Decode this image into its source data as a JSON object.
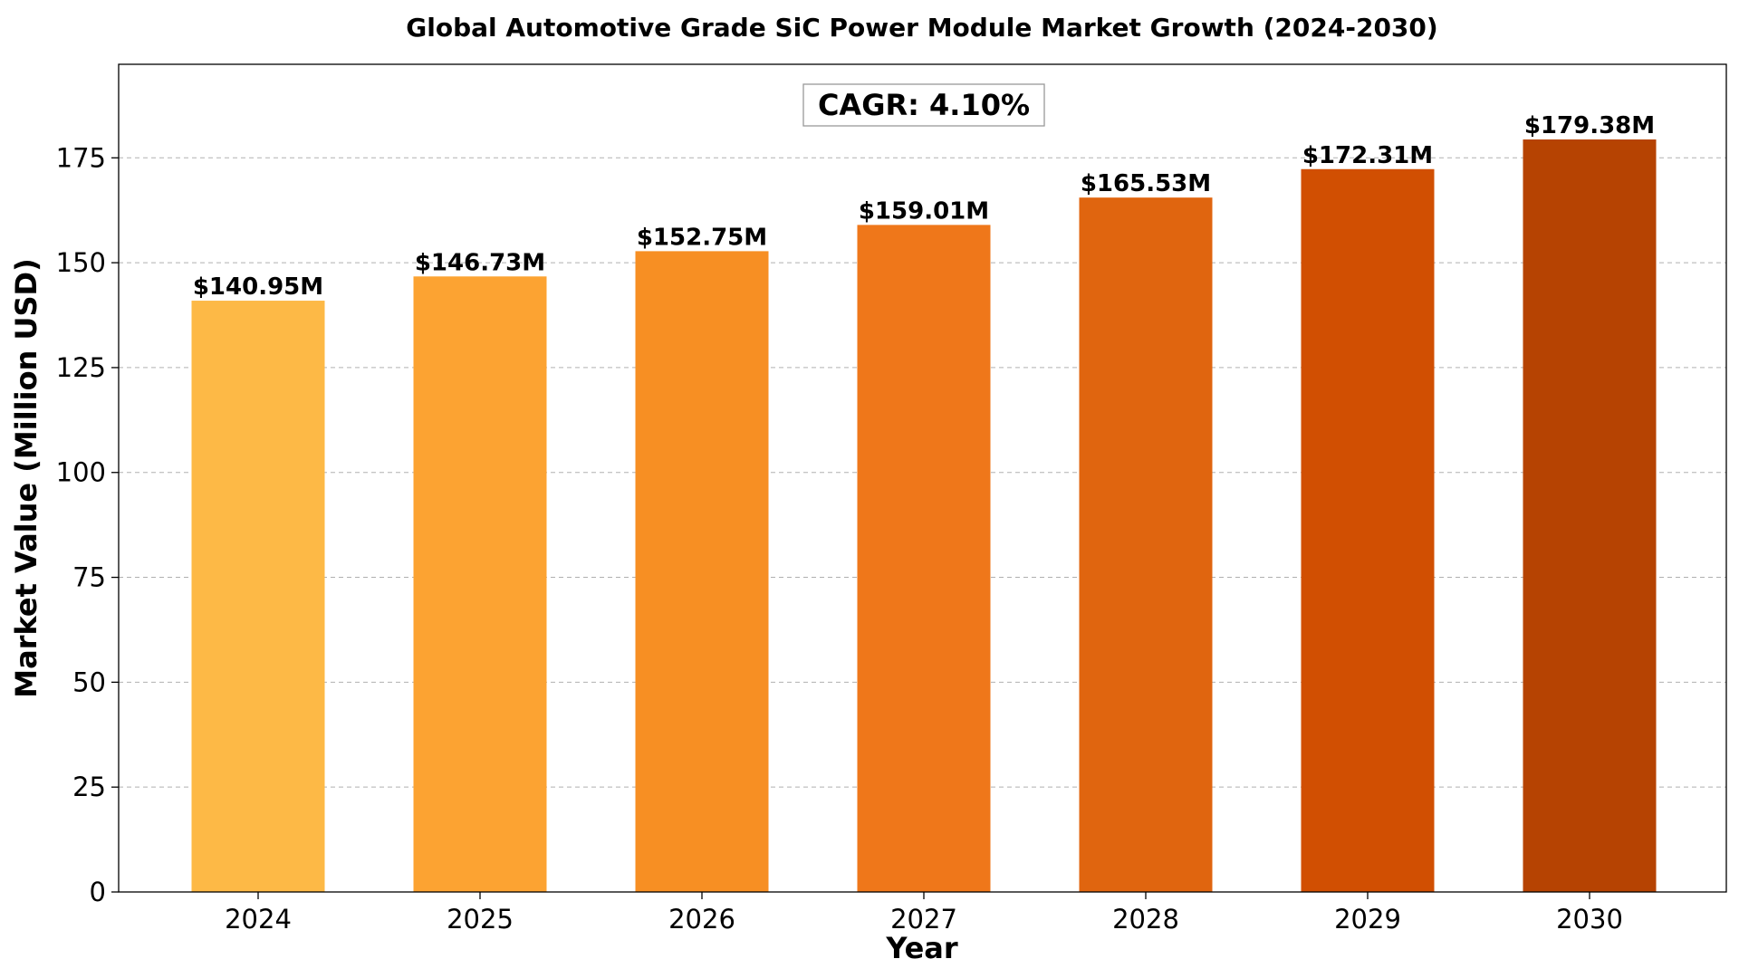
{
  "chart_data": {
    "type": "bar",
    "title": "Global Automotive Grade SiC Power Module Market Growth (2024-2030)",
    "xlabel": "Year",
    "ylabel": "Market Value (Million USD)",
    "categories": [
      "2024",
      "2025",
      "2026",
      "2027",
      "2028",
      "2029",
      "2030"
    ],
    "values": [
      140.95,
      146.73,
      152.75,
      159.01,
      165.53,
      172.31,
      179.38
    ],
    "data_labels": [
      "$140.95M",
      "$146.73M",
      "$152.75M",
      "$159.01M",
      "$165.53M",
      "$172.31M",
      "$179.38M"
    ],
    "colors": [
      "#FDB946",
      "#FCA332",
      "#F78F23",
      "#EF771A",
      "#E0650F",
      "#D14F02",
      "#B64302"
    ],
    "ylim": [
      0,
      197.3
    ],
    "yticks": [
      0,
      25,
      50,
      75,
      100,
      125,
      150,
      175
    ],
    "grid": true,
    "annotation": "CAGR: 4.10%"
  }
}
